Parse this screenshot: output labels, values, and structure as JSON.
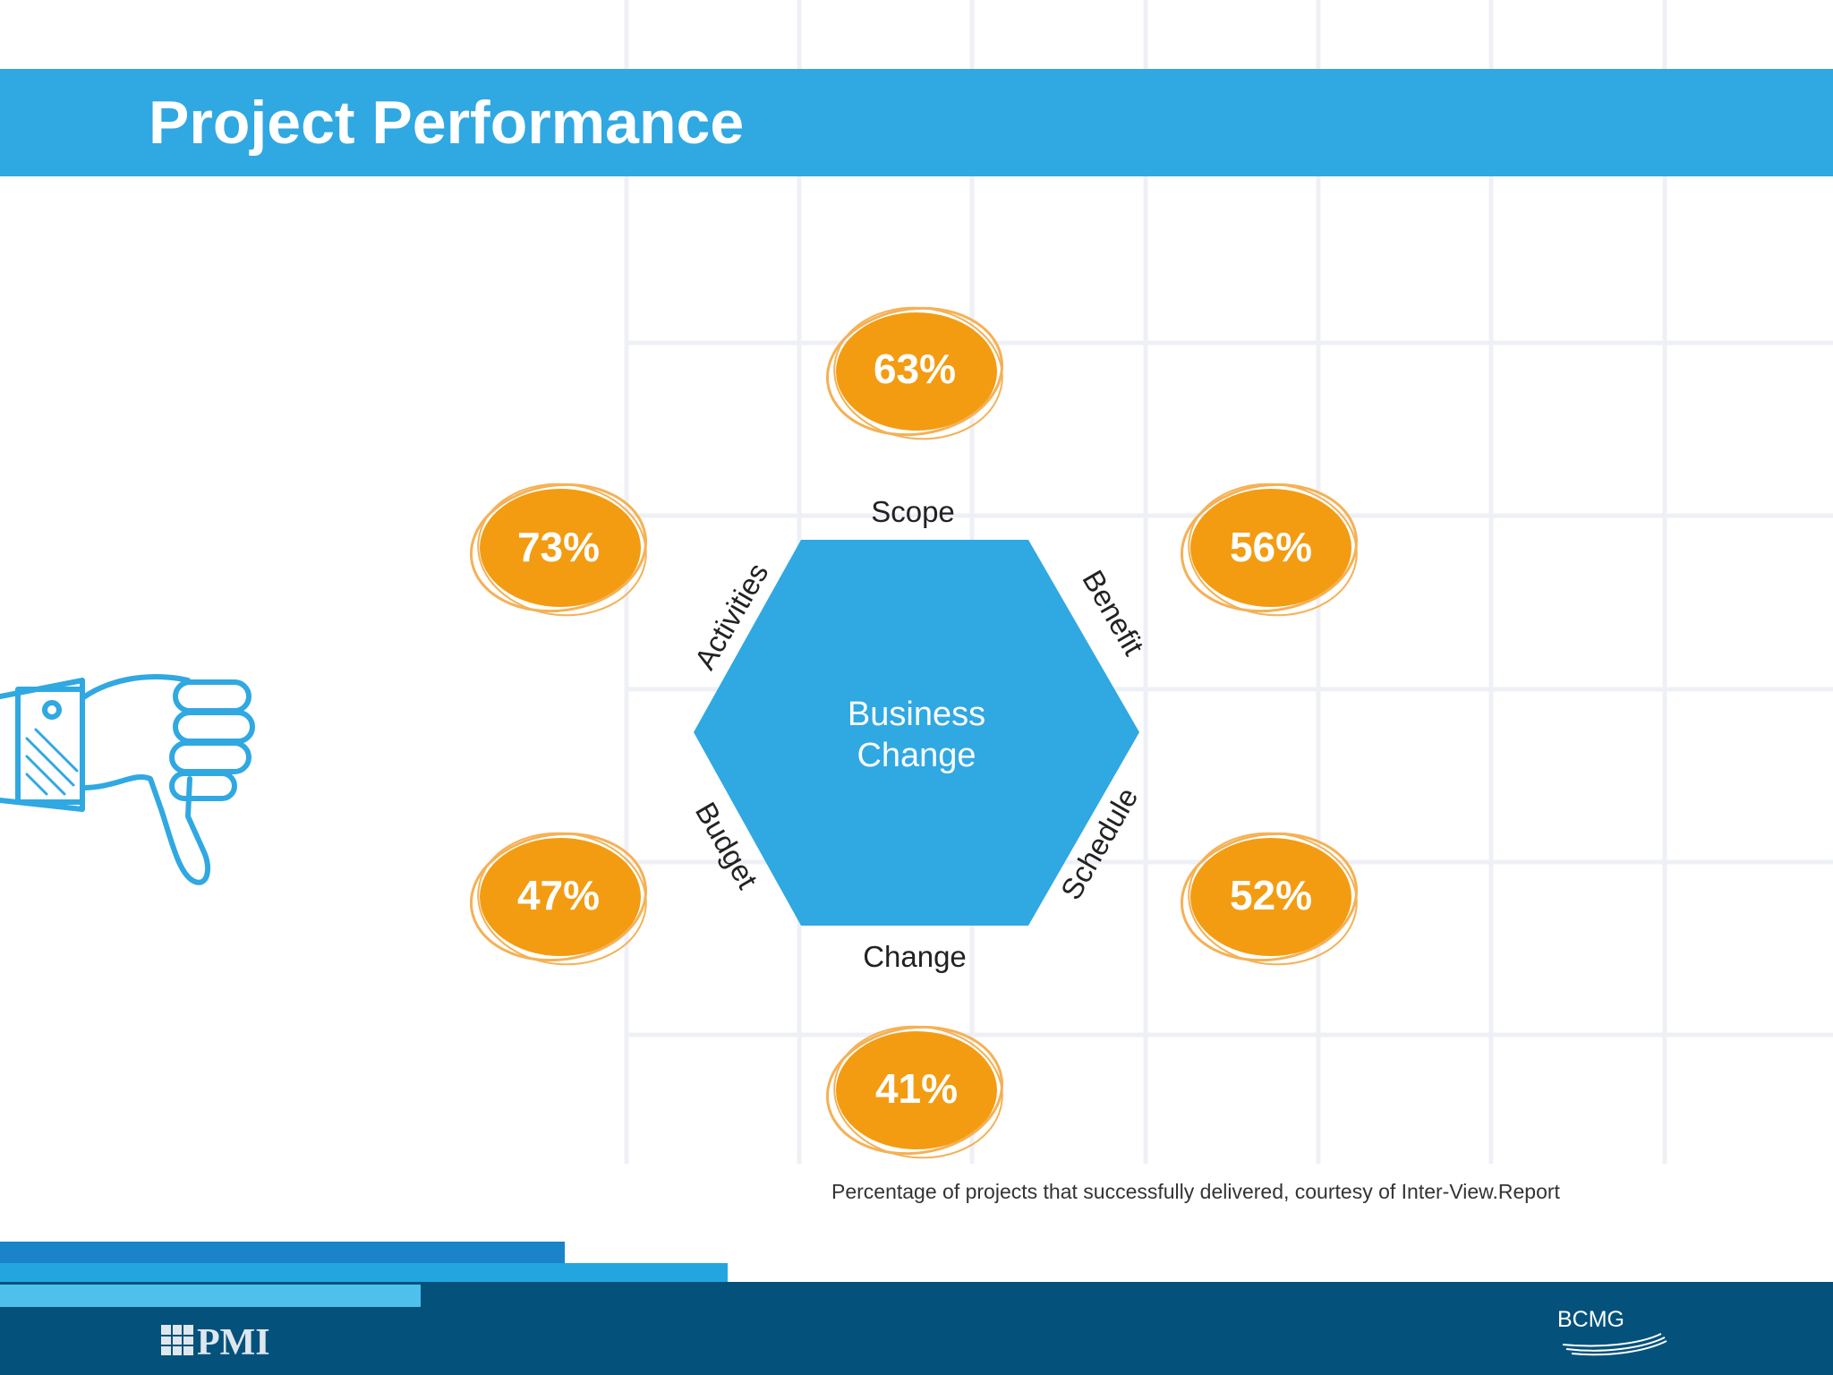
{
  "title": "Project Performance",
  "diagram": {
    "center_label": [
      "Business",
      "Change"
    ],
    "hexagon_color": "#30a8e2",
    "badge_color": "#f39c12",
    "factors": [
      {
        "label": "Scope",
        "value": "63%"
      },
      {
        "label": "Benefit",
        "value": "56%"
      },
      {
        "label": "Schedule",
        "value": "52%"
      },
      {
        "label": "Change",
        "value": "41%"
      },
      {
        "label": "Budget",
        "value": "47%"
      },
      {
        "label": "Activities",
        "value": "73%"
      }
    ]
  },
  "caption": "Percentage of projects that successfully delivered, courtesy of Inter-View.Report",
  "footer": {
    "left_logo_text": "PMI",
    "right_logo_text": "BCMG"
  },
  "icons": {
    "thumb": "thumbs-down-icon"
  }
}
